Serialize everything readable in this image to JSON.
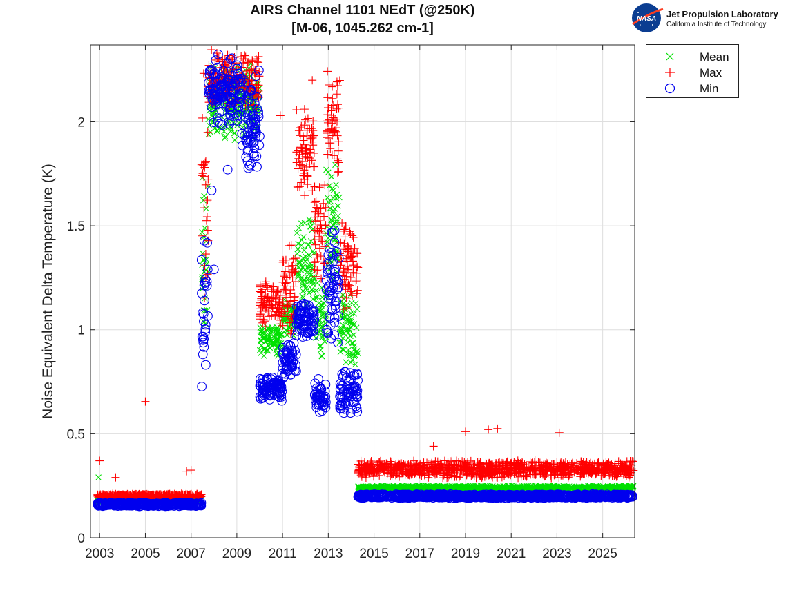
{
  "title": {
    "line1": "AIRS Channel 1101 NEdT (@250K)",
    "line2": "[M-06, 1045.262 cm-1]"
  },
  "logo": {
    "name": "Jet Propulsion Laboratory",
    "subtitle": "California Institute of Technology",
    "badge": "NASA",
    "colors": {
      "badge": "#0b3d91",
      "swoosh": "#fc3d21"
    }
  },
  "chart_data": {
    "type": "scatter",
    "title": "AIRS Channel 1101 NEdT (@250K) [M-06, 1045.262 cm-1]",
    "xlabel": "",
    "ylabel": "Noise Equivalent Delta Temperature (K)",
    "xlim": [
      2002.6,
      2026.4
    ],
    "ylim": [
      0,
      2.37
    ],
    "xticks": [
      2003,
      2005,
      2007,
      2009,
      2011,
      2013,
      2015,
      2017,
      2019,
      2021,
      2023,
      2025
    ],
    "yticks": [
      0,
      0.5,
      1,
      1.5,
      2
    ],
    "ytick_labels": [
      "0",
      "0.5",
      "1",
      "1.5",
      "2"
    ],
    "grid": true,
    "legend_position": "outside-top-right",
    "series": [
      {
        "name": "Mean",
        "marker": "x",
        "color": "#00e000",
        "segments": [
          {
            "x": [
              2002.9,
              2007.45
            ],
            "y": 0.18,
            "spread": 0.01
          },
          {
            "x": [
              2007.45,
              2007.75
            ],
            "y": 1.3,
            "spread": 0.55
          },
          {
            "x": [
              2007.75,
              2010.0
            ],
            "y": 2.1,
            "spread": 0.2
          },
          {
            "x": [
              2010.0,
              2011.0
            ],
            "y": 0.95,
            "spread": 0.08
          },
          {
            "x": [
              2011.0,
              2011.6
            ],
            "y": 1.05,
            "spread": 0.1
          },
          {
            "x": [
              2011.6,
              2012.4
            ],
            "y": 1.3,
            "spread": 0.25
          },
          {
            "x": [
              2012.4,
              2012.9
            ],
            "y": 1.05,
            "spread": 0.2
          },
          {
            "x": [
              2012.9,
              2013.5
            ],
            "y": 1.5,
            "spread": 0.35
          },
          {
            "x": [
              2013.5,
              2014.3
            ],
            "y": 1.0,
            "spread": 0.2
          },
          {
            "x": [
              2014.3,
              2026.35
            ],
            "y": 0.24,
            "spread": 0.012
          }
        ],
        "outliers": [
          {
            "x": 2002.95,
            "y": 0.29
          }
        ]
      },
      {
        "name": "Max",
        "marker": "+",
        "color": "#ff0000",
        "segments": [
          {
            "x": [
              2002.9,
              2007.45
            ],
            "y": 0.2,
            "spread": 0.012
          },
          {
            "x": [
              2007.45,
              2007.75
            ],
            "y": 1.6,
            "spread": 0.75
          },
          {
            "x": [
              2007.75,
              2010.0
            ],
            "y": 2.2,
            "spread": 0.15
          },
          {
            "x": [
              2010.0,
              2011.0
            ],
            "y": 1.12,
            "spread": 0.12
          },
          {
            "x": [
              2011.0,
              2011.6
            ],
            "y": 1.2,
            "spread": 0.25
          },
          {
            "x": [
              2011.6,
              2012.4
            ],
            "y": 1.85,
            "spread": 0.25
          },
          {
            "x": [
              2012.4,
              2012.9
            ],
            "y": 1.45,
            "spread": 0.3
          },
          {
            "x": [
              2012.9,
              2013.5
            ],
            "y": 2.0,
            "spread": 0.3
          },
          {
            "x": [
              2013.5,
              2014.3
            ],
            "y": 1.3,
            "spread": 0.25
          },
          {
            "x": [
              2014.3,
              2026.35
            ],
            "y": 0.33,
            "spread": 0.045
          }
        ],
        "outliers": [
          {
            "x": 2003.0,
            "y": 0.37
          },
          {
            "x": 2003.7,
            "y": 0.29
          },
          {
            "x": 2005.0,
            "y": 0.655
          },
          {
            "x": 2006.8,
            "y": 0.32
          },
          {
            "x": 2007.0,
            "y": 0.325
          },
          {
            "x": 2010.9,
            "y": 2.03
          },
          {
            "x": 2012.3,
            "y": 2.2
          },
          {
            "x": 2017.6,
            "y": 0.44
          },
          {
            "x": 2019.0,
            "y": 0.51
          },
          {
            "x": 2020.0,
            "y": 0.52
          },
          {
            "x": 2020.4,
            "y": 0.525
          },
          {
            "x": 2023.1,
            "y": 0.505
          }
        ]
      },
      {
        "name": "Min",
        "marker": "o",
        "color": "#0000ee",
        "segments": [
          {
            "x": [
              2002.9,
              2007.45
            ],
            "y": 0.16,
            "spread": 0.01
          },
          {
            "x": [
              2007.45,
              2007.75
            ],
            "y": 1.1,
            "spread": 0.45
          },
          {
            "x": [
              2007.75,
              2009.2
            ],
            "y": 2.15,
            "spread": 0.2
          },
          {
            "x": [
              2009.2,
              2010.0
            ],
            "y": 2.0,
            "spread": 0.25
          },
          {
            "x": [
              2010.0,
              2011.0
            ],
            "y": 0.72,
            "spread": 0.07
          },
          {
            "x": [
              2011.0,
              2011.6
            ],
            "y": 0.85,
            "spread": 0.1
          },
          {
            "x": [
              2011.6,
              2012.4
            ],
            "y": 1.05,
            "spread": 0.1
          },
          {
            "x": [
              2012.4,
              2012.9
            ],
            "y": 0.68,
            "spread": 0.1
          },
          {
            "x": [
              2012.9,
              2013.5
            ],
            "y": 1.2,
            "spread": 0.3
          },
          {
            "x": [
              2013.5,
              2014.3
            ],
            "y": 0.7,
            "spread": 0.12
          },
          {
            "x": [
              2014.3,
              2026.35
            ],
            "y": 0.2,
            "spread": 0.01
          }
        ],
        "outliers": [
          {
            "x": 2008.0,
            "y": 1.29
          },
          {
            "x": 2007.9,
            "y": 1.67
          },
          {
            "x": 2008.6,
            "y": 1.77
          }
        ]
      }
    ]
  }
}
